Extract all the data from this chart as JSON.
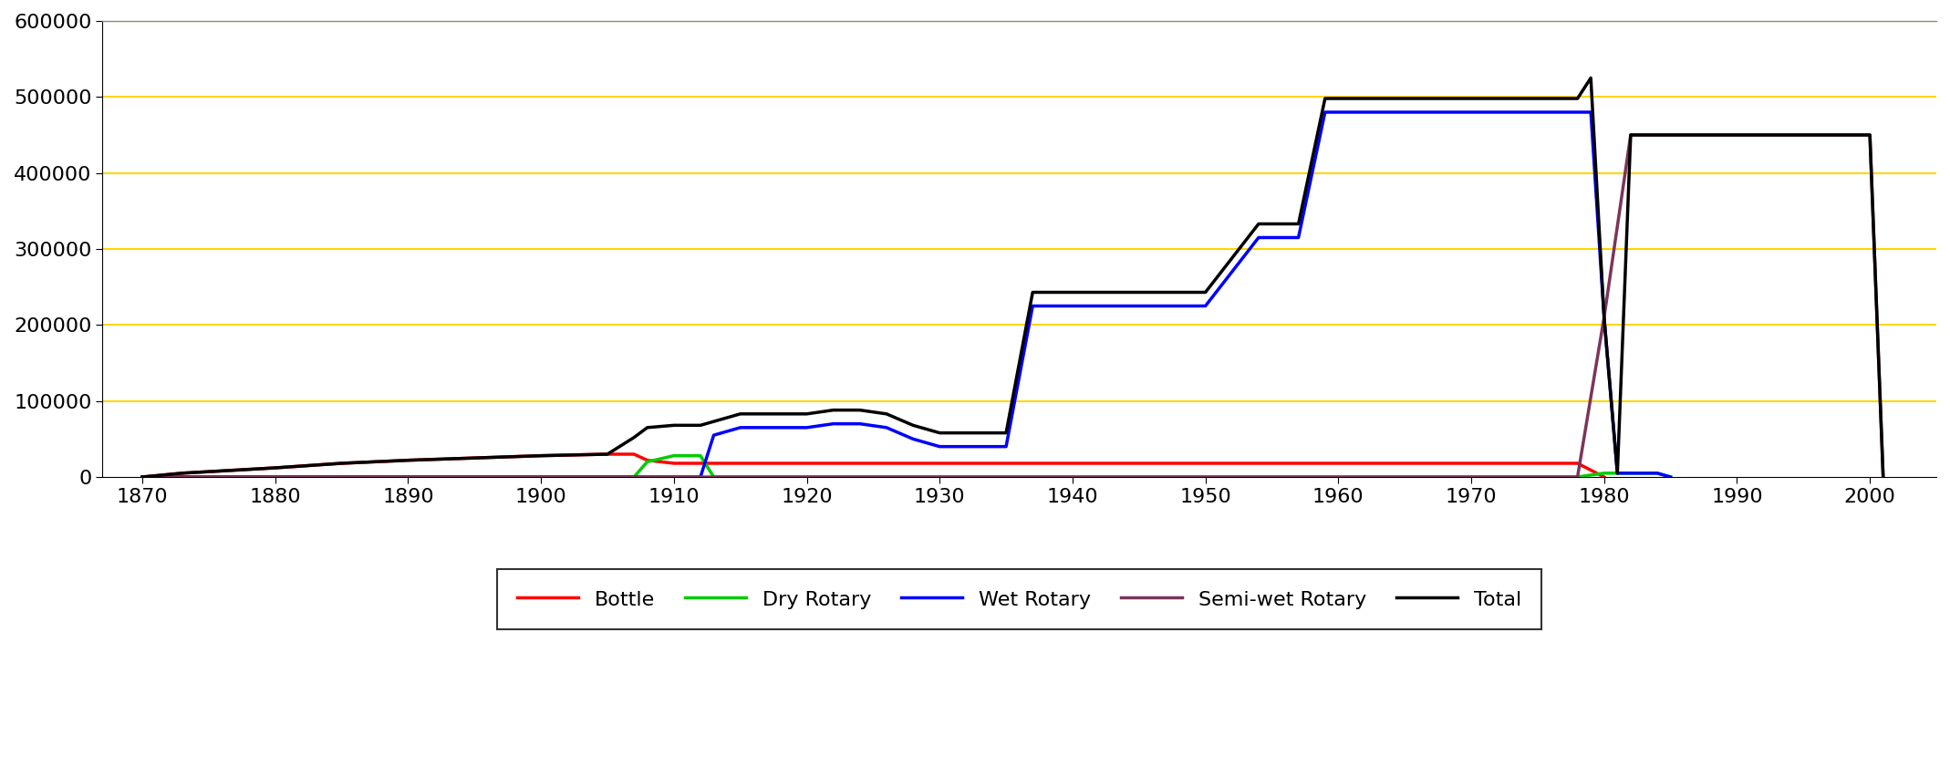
{
  "series": {
    "Bottle": {
      "color": "#ff0000",
      "linewidth": 2.5,
      "data": [
        [
          1870,
          0
        ],
        [
          1873,
          5000
        ],
        [
          1880,
          12000
        ],
        [
          1885,
          18000
        ],
        [
          1890,
          22000
        ],
        [
          1895,
          25000
        ],
        [
          1900,
          28000
        ],
        [
          1905,
          30000
        ],
        [
          1907,
          30000
        ],
        [
          1908,
          22000
        ],
        [
          1910,
          18000
        ],
        [
          1912,
          18000
        ],
        [
          1914,
          18000
        ],
        [
          1916,
          18000
        ],
        [
          1918,
          18000
        ],
        [
          1920,
          18000
        ],
        [
          1925,
          18000
        ],
        [
          1930,
          18000
        ],
        [
          1935,
          18000
        ],
        [
          1938,
          18000
        ],
        [
          1940,
          18000
        ],
        [
          1945,
          18000
        ],
        [
          1950,
          18000
        ],
        [
          1955,
          18000
        ],
        [
          1960,
          18000
        ],
        [
          1965,
          18000
        ],
        [
          1970,
          18000
        ],
        [
          1975,
          18000
        ],
        [
          1978,
          18000
        ],
        [
          1980,
          0
        ]
      ]
    },
    "Dry Rotary": {
      "color": "#00cc00",
      "linewidth": 2.5,
      "data": [
        [
          1870,
          0
        ],
        [
          1907,
          0
        ],
        [
          1908,
          20000
        ],
        [
          1910,
          28000
        ],
        [
          1912,
          28000
        ],
        [
          1913,
          0
        ],
        [
          1978,
          0
        ],
        [
          1980,
          5000
        ],
        [
          1984,
          5000
        ],
        [
          1985,
          0
        ]
      ]
    },
    "Wet Rotary": {
      "color": "#0000ff",
      "linewidth": 2.5,
      "data": [
        [
          1870,
          0
        ],
        [
          1912,
          0
        ],
        [
          1913,
          55000
        ],
        [
          1915,
          65000
        ],
        [
          1917,
          65000
        ],
        [
          1919,
          65000
        ],
        [
          1920,
          65000
        ],
        [
          1922,
          70000
        ],
        [
          1924,
          70000
        ],
        [
          1926,
          65000
        ],
        [
          1928,
          50000
        ],
        [
          1930,
          40000
        ],
        [
          1932,
          40000
        ],
        [
          1935,
          40000
        ],
        [
          1937,
          225000
        ],
        [
          1939,
          225000
        ],
        [
          1940,
          225000
        ],
        [
          1945,
          225000
        ],
        [
          1950,
          225000
        ],
        [
          1954,
          315000
        ],
        [
          1957,
          315000
        ],
        [
          1959,
          480000
        ],
        [
          1965,
          480000
        ],
        [
          1970,
          480000
        ],
        [
          1975,
          480000
        ],
        [
          1978,
          480000
        ],
        [
          1979,
          480000
        ],
        [
          1980,
          210000
        ],
        [
          1981,
          5000
        ],
        [
          1984,
          5000
        ],
        [
          1985,
          0
        ]
      ]
    },
    "Semi-wet Rotary": {
      "color": "#7b3558",
      "linewidth": 2.5,
      "data": [
        [
          1870,
          0
        ],
        [
          1978,
          0
        ],
        [
          1980,
          210000
        ],
        [
          1982,
          450000
        ],
        [
          1984,
          450000
        ],
        [
          1990,
          450000
        ],
        [
          1995,
          450000
        ],
        [
          2000,
          450000
        ],
        [
          2001,
          0
        ]
      ]
    },
    "Total": {
      "color": "#000000",
      "linewidth": 2.5,
      "data": [
        [
          1870,
          0
        ],
        [
          1873,
          5000
        ],
        [
          1880,
          12000
        ],
        [
          1885,
          18000
        ],
        [
          1890,
          22000
        ],
        [
          1895,
          25000
        ],
        [
          1900,
          28000
        ],
        [
          1905,
          30000
        ],
        [
          1907,
          52000
        ],
        [
          1908,
          65000
        ],
        [
          1910,
          68000
        ],
        [
          1912,
          68000
        ],
        [
          1913,
          73000
        ],
        [
          1915,
          83000
        ],
        [
          1917,
          83000
        ],
        [
          1919,
          83000
        ],
        [
          1920,
          83000
        ],
        [
          1922,
          88000
        ],
        [
          1924,
          88000
        ],
        [
          1926,
          83000
        ],
        [
          1928,
          68000
        ],
        [
          1930,
          58000
        ],
        [
          1932,
          58000
        ],
        [
          1935,
          58000
        ],
        [
          1937,
          243000
        ],
        [
          1939,
          243000
        ],
        [
          1940,
          243000
        ],
        [
          1945,
          243000
        ],
        [
          1950,
          243000
        ],
        [
          1954,
          333000
        ],
        [
          1957,
          333000
        ],
        [
          1959,
          498000
        ],
        [
          1965,
          498000
        ],
        [
          1970,
          498000
        ],
        [
          1975,
          498000
        ],
        [
          1978,
          498000
        ],
        [
          1979,
          525000
        ],
        [
          1980,
          210000
        ],
        [
          1981,
          5000
        ],
        [
          1982,
          450000
        ],
        [
          1984,
          450000
        ],
        [
          1990,
          450000
        ],
        [
          1995,
          450000
        ],
        [
          2000,
          450000
        ],
        [
          2001,
          0
        ]
      ]
    }
  },
  "xlim": [
    1867,
    2005
  ],
  "ylim": [
    0,
    600000
  ],
  "yticks": [
    0,
    100000,
    200000,
    300000,
    400000,
    500000,
    600000
  ],
  "xticks": [
    1870,
    1880,
    1890,
    1900,
    1910,
    1920,
    1930,
    1940,
    1950,
    1960,
    1970,
    1980,
    1990,
    2000
  ],
  "grid_color": "#ffd700",
  "background_color": "#ffffff",
  "legend_order": [
    "Bottle",
    "Dry Rotary",
    "Wet Rotary",
    "Semi-wet Rotary",
    "Total"
  ]
}
